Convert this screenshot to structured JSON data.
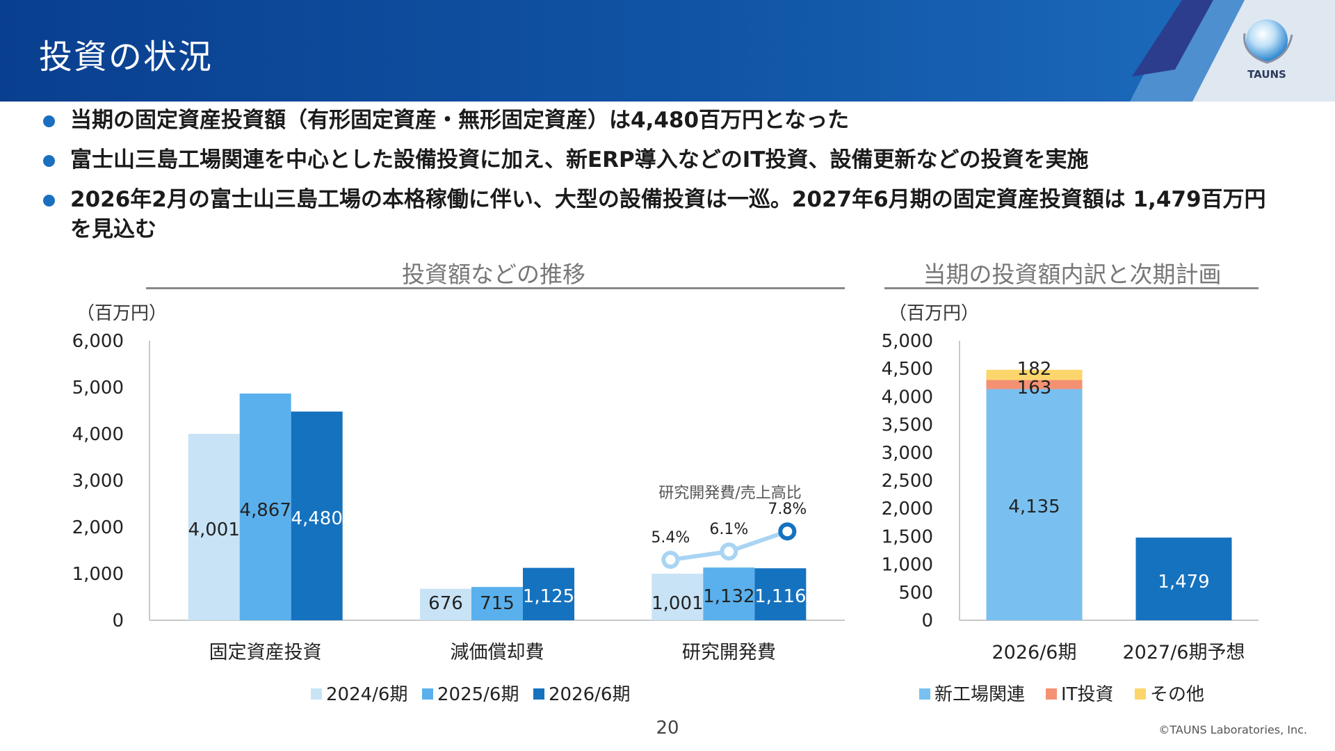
{
  "header": {
    "title": "投資の状況",
    "logo_text": "TAUNS"
  },
  "bullets": [
    "当期の固定資産投資額（有形固定資産・無形固定資産）は4,480百万円となった",
    "富士山三島工場関連を中心とした設備投資に加え、新ERP導入などのIT投資、設備更新などの投資を実施",
    "2026年2月の富士山三島工場の本格稼働に伴い、大型の設備投資は一巡。2027年6月期の固定資産投資額は 1,479百万円を見込む"
  ],
  "colors": {
    "light": "#c8e3f6",
    "mid": "#5ab0ec",
    "dark": "#1572bf",
    "new_factory": "#79c0f0",
    "it": "#f59173",
    "other": "#fcd66c",
    "ratio_line": "#a9d4f3"
  },
  "chart_data": [
    {
      "type": "bar",
      "title": "投資額などの推移",
      "ylabel": "（百万円）",
      "ylim": [
        0,
        6000
      ],
      "yticks": [
        "0",
        "1,000",
        "2,000",
        "3,000",
        "4,000",
        "5,000",
        "6,000"
      ],
      "categories": [
        "固定資産投資",
        "減価償却費",
        "研究開発費"
      ],
      "series": [
        {
          "name": "2024/6期",
          "values": [
            4001,
            676,
            1001
          ],
          "labels": [
            "4,001",
            "676",
            "1,001"
          ]
        },
        {
          "name": "2025/6期",
          "values": [
            4867,
            715,
            1132
          ],
          "labels": [
            "4,867",
            "715",
            "1,132"
          ]
        },
        {
          "name": "2026/6期",
          "values": [
            4480,
            1125,
            1116
          ],
          "labels": [
            "4,480",
            "1,125",
            "1,116"
          ]
        }
      ],
      "legend_position": "bottom",
      "ratio_line": {
        "name": "研究開発費/売上高比",
        "values": [
          5.4,
          6.1,
          7.8
        ],
        "labels": [
          "5.4%",
          "6.1%",
          "7.8%"
        ]
      }
    },
    {
      "type": "bar",
      "stacked": true,
      "title": "当期の投資額内訳と次期計画",
      "ylabel": "（百万円）",
      "ylim": [
        0,
        5000
      ],
      "yticks": [
        "0",
        "500",
        "1,000",
        "1,500",
        "2,000",
        "2,500",
        "3,000",
        "3,500",
        "4,000",
        "4,500",
        "5,000"
      ],
      "categories": [
        "2026/6期",
        "2027/6期予想"
      ],
      "series": [
        {
          "name": "新工場関連",
          "values": [
            4135,
            0
          ],
          "labels": [
            "4,135",
            ""
          ]
        },
        {
          "name": "IT投資",
          "values": [
            163,
            0
          ],
          "labels": [
            "163",
            ""
          ]
        },
        {
          "name": "その他",
          "values": [
            182,
            0
          ],
          "labels": [
            "182",
            ""
          ]
        }
      ],
      "forecast": {
        "values": [
          0,
          1479
        ],
        "labels": [
          "",
          "1,479"
        ]
      },
      "legend_position": "bottom"
    }
  ],
  "footer": {
    "page": "20",
    "copyright": "©TAUNS Laboratories, Inc."
  }
}
